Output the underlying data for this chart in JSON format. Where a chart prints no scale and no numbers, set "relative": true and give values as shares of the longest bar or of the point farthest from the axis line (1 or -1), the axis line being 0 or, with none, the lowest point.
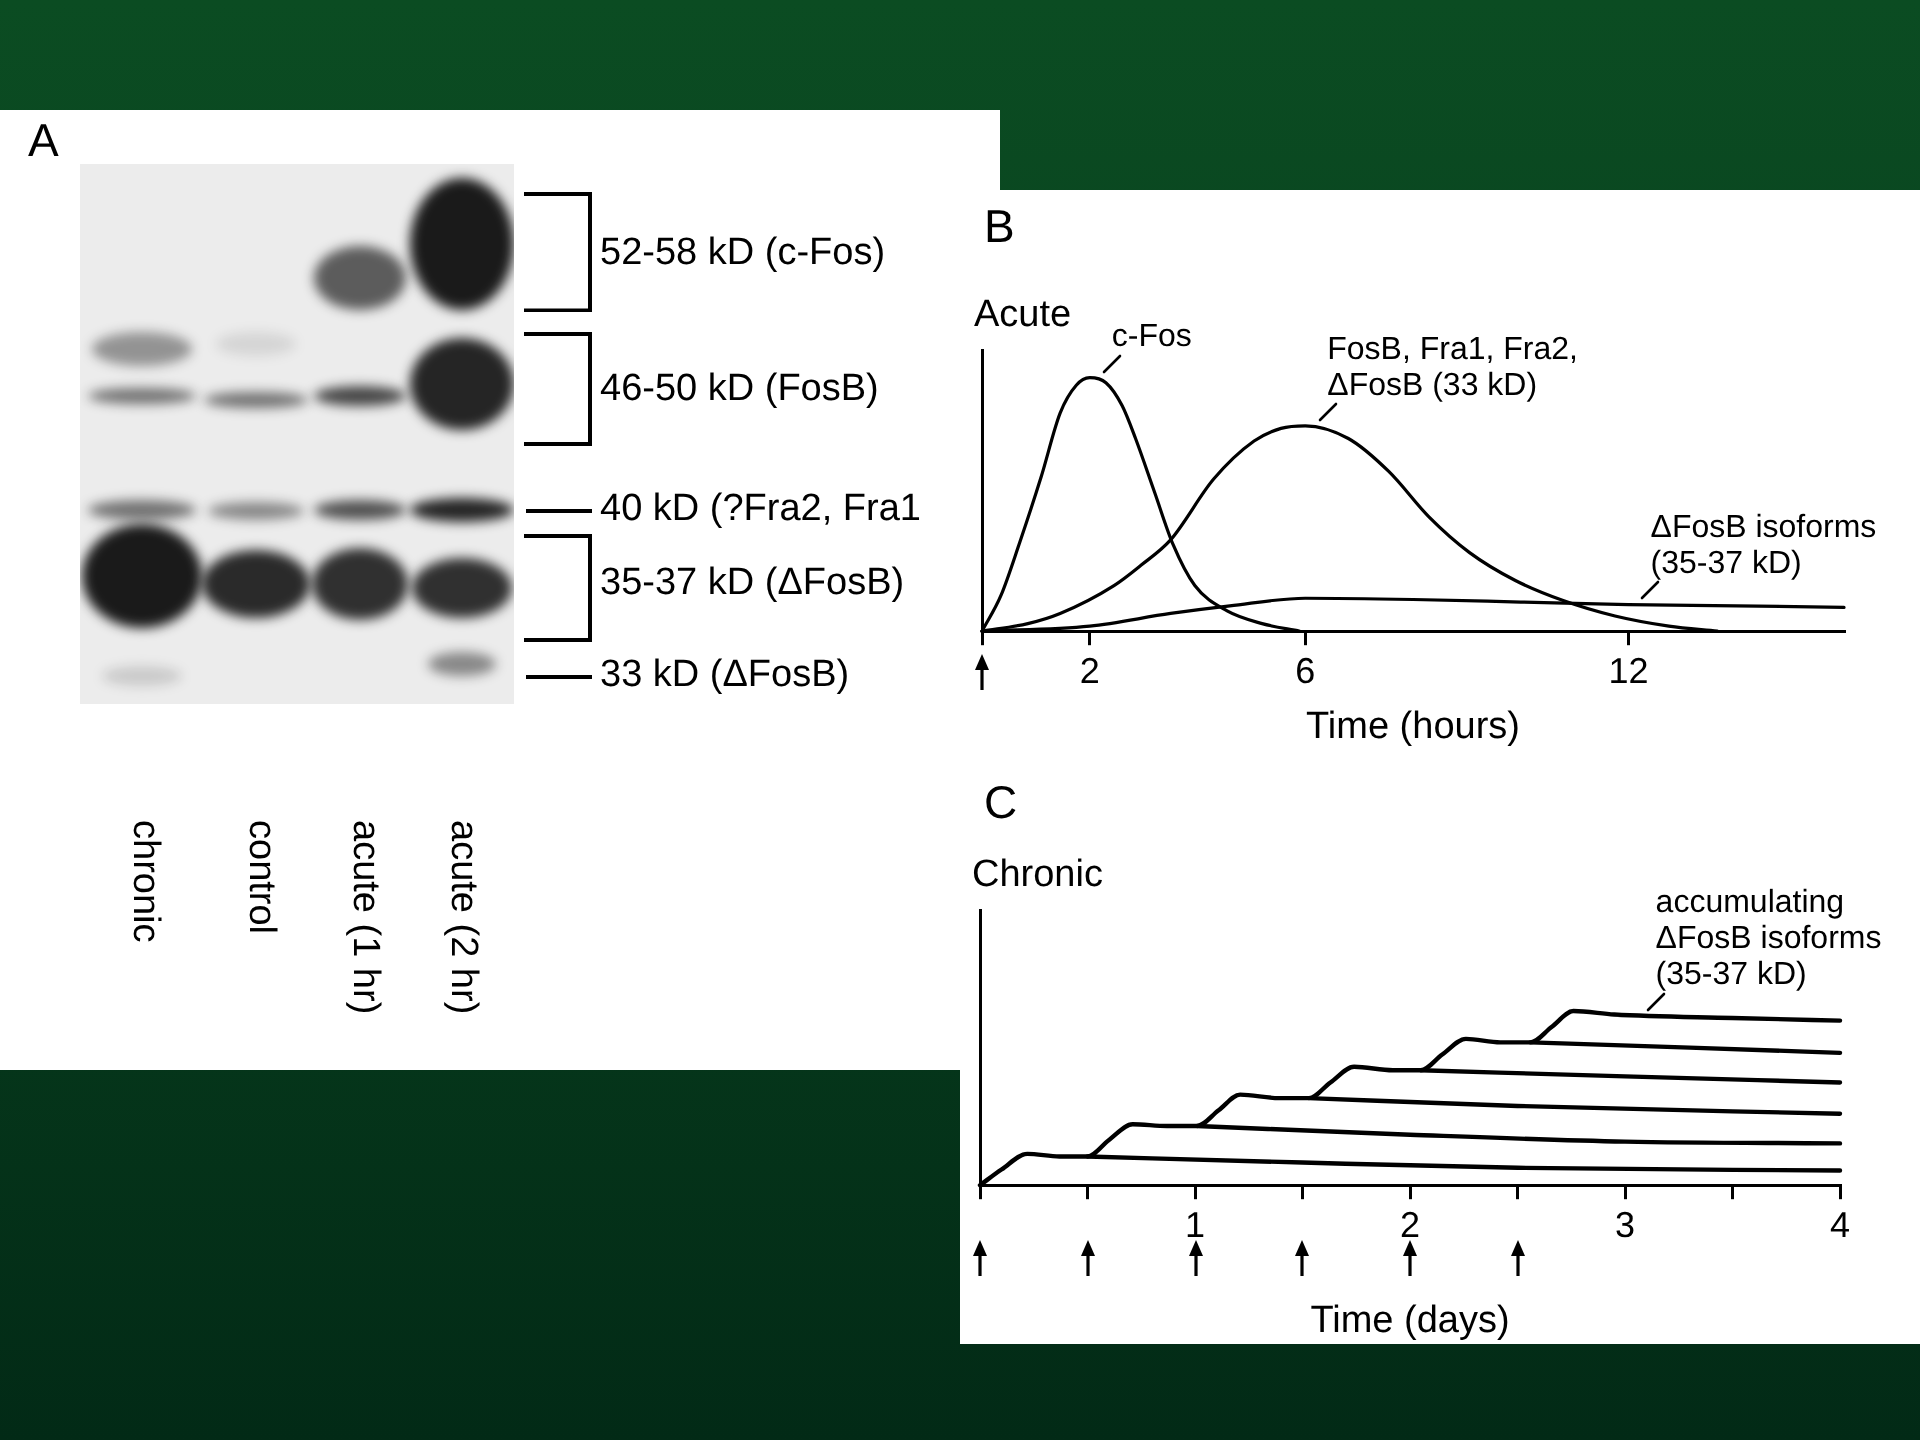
{
  "chart_data": [
    {
      "type": "other",
      "title": "A",
      "annotations": [
        "52-58 kD (c-Fos)",
        "46-50 kD (FosB)",
        "40 kD (?Fra2, Fra1",
        "35-37 kD (ΔFosB)",
        "33 kD (ΔFosB)",
        "chronic",
        "control",
        "acute (1 hr)",
        "acute (2 hr)"
      ]
    },
    {
      "type": "line",
      "title": "B",
      "ylabel": "Acute",
      "xlabel": "Time (hours)",
      "relative": true,
      "xlim": [
        0,
        16
      ],
      "xticks": [
        {
          "value": 0,
          "label": null
        },
        2,
        6,
        12
      ],
      "legend": false,
      "grid": false,
      "marker": "none",
      "series": [
        {
          "name": "c-Fos",
          "color": "#000000",
          "x": [
            0,
            0.35,
            0.7,
            1.1,
            1.45,
            1.75,
            2,
            2.3,
            2.6,
            2.85,
            3.2,
            3.55,
            3.95,
            4.55,
            5.2,
            5.9
          ],
          "values": [
            0,
            0.14,
            0.35,
            0.61,
            0.86,
            0.97,
            1,
            0.98,
            0.89,
            0.76,
            0.55,
            0.34,
            0.18,
            0.08,
            0.03,
            0
          ]
        },
        {
          "name": "FosB, Fra1, Fra2, ΔFosB (33 kD)",
          "color": "#000000",
          "x": [
            0,
            0.85,
            1.45,
            2.45,
            2.95,
            3.5,
            4.3,
            5.05,
            5.55,
            6,
            6.8,
            7.55,
            8.3,
            9.05,
            9.9,
            10.8,
            11.75,
            12.75,
            13.65
          ],
          "values": [
            0,
            0.03,
            0.07,
            0.18,
            0.26,
            0.36,
            0.6,
            0.75,
            0.8,
            0.81,
            0.76,
            0.63,
            0.45,
            0.31,
            0.2,
            0.12,
            0.06,
            0.02,
            0
          ]
        },
        {
          "name": "ΔFosB isoforms (35-37 kD)",
          "color": "#000000",
          "x": [
            0,
            2,
            3.5,
            4.6,
            6,
            8,
            10,
            12,
            14,
            16
          ],
          "values": [
            0,
            0.02,
            0.07,
            0.1,
            0.13,
            0.125,
            0.115,
            0.105,
            0.1,
            0.094
          ]
        }
      ]
    },
    {
      "type": "line",
      "title": "C",
      "ylabel": "Chronic",
      "xlabel": "Time (days)",
      "relative": true,
      "xlim": [
        0,
        4
      ],
      "xticks": [
        {
          "value": 0,
          "label": null
        },
        {
          "value": 0.5,
          "label": null
        },
        1,
        {
          "value": 1.5,
          "label": null
        },
        2,
        {
          "value": 2.5,
          "label": null
        },
        3,
        {
          "value": 3.5,
          "label": null
        },
        4
      ],
      "legend": false,
      "grid": false,
      "marker": "none",
      "series": [
        {
          "name": "accumulating ΔFosB isoforms (35-37 kD)",
          "color": "#000000",
          "x": [
            0,
            0.1,
            0.22,
            0.37,
            0.5,
            0.6,
            0.71,
            0.87,
            1.01,
            1.11,
            1.21,
            1.39,
            1.53,
            1.63,
            1.74,
            1.92,
            2.05,
            2.15,
            2.26,
            2.42,
            2.56,
            2.66,
            2.76,
            2.95,
            3.5,
            4
          ],
          "values": [
            0,
            0.09,
            0.18,
            0.165,
            0.165,
            0.26,
            0.35,
            0.34,
            0.34,
            0.43,
            0.52,
            0.5,
            0.5,
            0.59,
            0.68,
            0.66,
            0.66,
            0.75,
            0.84,
            0.82,
            0.82,
            0.91,
            1,
            0.98,
            0.96,
            0.945
          ]
        },
        {
          "color": "#000000",
          "x": [
            0.5,
            1.5,
            2.5,
            4
          ],
          "values": [
            0.165,
            0.13,
            0.1,
            0.084
          ]
        },
        {
          "color": "#000000",
          "x": [
            1.01,
            2,
            3,
            4
          ],
          "values": [
            0.34,
            0.29,
            0.25,
            0.24
          ]
        },
        {
          "color": "#000000",
          "x": [
            1.53,
            2.5,
            4
          ],
          "values": [
            0.5,
            0.455,
            0.41
          ]
        },
        {
          "color": "#000000",
          "x": [
            2.05,
            3,
            4
          ],
          "values": [
            0.66,
            0.625,
            0.59
          ]
        },
        {
          "color": "#000000",
          "x": [
            2.56,
            3.3,
            4
          ],
          "values": [
            0.82,
            0.79,
            0.76
          ]
        }
      ]
    }
  ]
}
